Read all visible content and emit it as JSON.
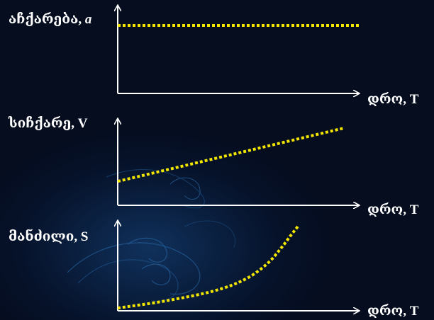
{
  "chart_data": [
    {
      "type": "line",
      "title": "",
      "ylabel": "აჩქარება, a",
      "xlabel": "დრო, T",
      "y_symbol": "a",
      "line_color": "#f2e600",
      "line_style": "dotted",
      "ylim": [
        0,
        1
      ],
      "xlim": [
        0,
        1
      ],
      "series": [
        {
          "x": [
            0.0,
            1.0
          ],
          "y": [
            0.8,
            0.8
          ]
        }
      ]
    },
    {
      "type": "line",
      "title": "",
      "ylabel": "სიჩქარე, V",
      "xlabel": "დრო, T",
      "y_symbol": "V",
      "line_color": "#f2e600",
      "line_style": "dotted",
      "ylim": [
        0,
        1
      ],
      "xlim": [
        0,
        1
      ],
      "series": [
        {
          "x": [
            0.0,
            0.94
          ],
          "y": [
            0.26,
            0.84
          ]
        }
      ]
    },
    {
      "type": "line",
      "title": "",
      "ylabel": "მანძილი, S",
      "xlabel": "დრო, T",
      "y_symbol": "S",
      "line_color": "#f2e600",
      "line_style": "dotted",
      "ylim": [
        0,
        1
      ],
      "xlim": [
        0,
        1
      ],
      "series": [
        {
          "x": [
            0.0,
            0.2,
            0.4,
            0.53,
            0.62,
            0.68,
            0.72,
            0.75
          ],
          "y": [
            0.03,
            0.11,
            0.22,
            0.35,
            0.52,
            0.7,
            0.84,
            0.94
          ]
        }
      ]
    }
  ],
  "labels": {
    "y1_prefix": "აჩქარება, ",
    "y1_symbol": "a",
    "y2": "სიჩქარე, V",
    "y3": "მანძილი, S",
    "x1": "დრო, T",
    "x2": "დრო, T",
    "x3": "დრო, T"
  }
}
